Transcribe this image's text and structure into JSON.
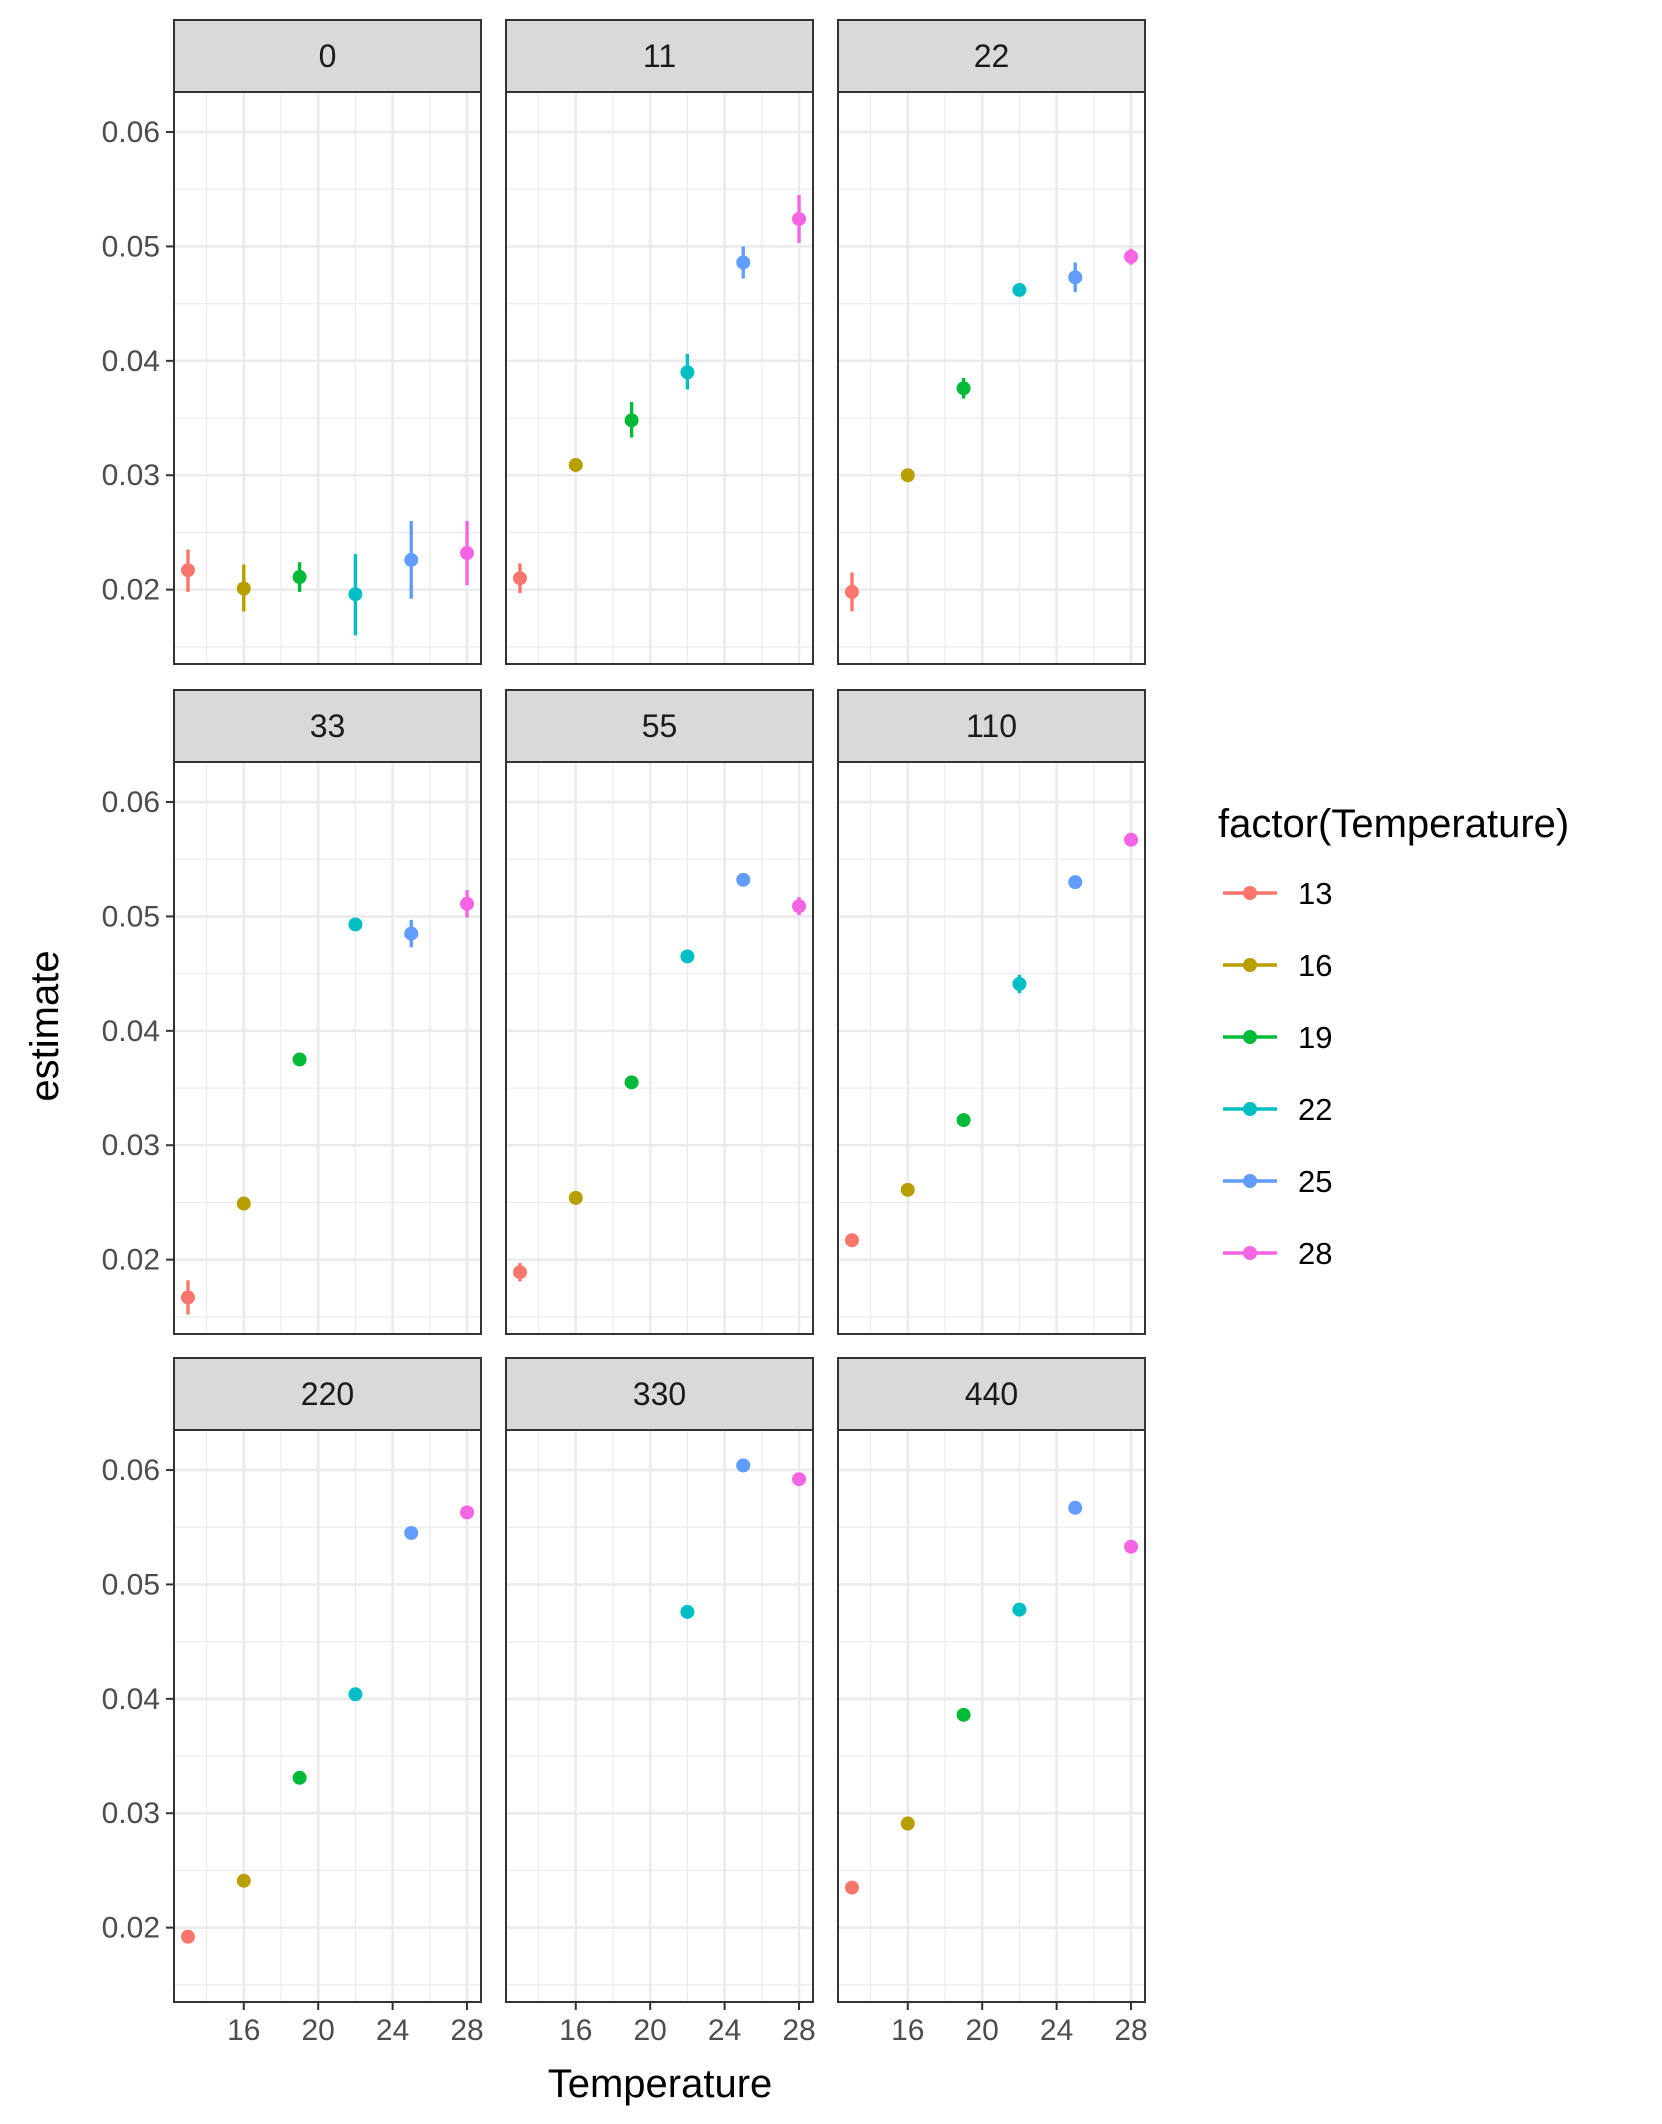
{
  "chart_data": {
    "type": "scatter",
    "subtype": "faceted point-range",
    "xlabel": "Temperature",
    "ylabel": "estimate",
    "x_ticks": [
      16,
      20,
      24,
      28
    ],
    "y_ticks": [
      0.02,
      0.03,
      0.04,
      0.05,
      0.06
    ],
    "y_tick_labels": [
      "0.02",
      "0.03",
      "0.04",
      "0.05",
      "0.06"
    ],
    "xlim": [
      12.25,
      28.75
    ],
    "ylim": [
      0.0135,
      0.0635
    ],
    "grid": true,
    "legend": {
      "title": "factor(Temperature)",
      "position": "right",
      "entries": [
        "13",
        "16",
        "19",
        "22",
        "25",
        "28"
      ]
    },
    "colors": {
      "13": "#F8766D",
      "16": "#B79F00",
      "19": "#00BA38",
      "22": "#00BFC4",
      "25": "#619CFF",
      "28": "#F564E3",
      "strip_bg": "#d9d9d9",
      "grid": "#ebebeb",
      "panel_border": "#333333"
    },
    "facets": [
      {
        "label": "0",
        "points": [
          {
            "x": 13,
            "y": 0.0217,
            "lo": 0.0198,
            "hi": 0.0235
          },
          {
            "x": 16,
            "y": 0.0201,
            "lo": 0.0181,
            "hi": 0.0222
          },
          {
            "x": 19,
            "y": 0.0211,
            "lo": 0.0198,
            "hi": 0.0224
          },
          {
            "x": 22,
            "y": 0.0196,
            "lo": 0.016,
            "hi": 0.0231
          },
          {
            "x": 25,
            "y": 0.0226,
            "lo": 0.0192,
            "hi": 0.026
          },
          {
            "x": 28,
            "y": 0.0232,
            "lo": 0.0204,
            "hi": 0.026
          }
        ]
      },
      {
        "label": "11",
        "points": [
          {
            "x": 13,
            "y": 0.021,
            "lo": 0.0197,
            "hi": 0.0223
          },
          {
            "x": 16,
            "y": 0.0309,
            "lo": 0.0303,
            "hi": 0.0315
          },
          {
            "x": 19,
            "y": 0.0348,
            "lo": 0.0333,
            "hi": 0.0364
          },
          {
            "x": 22,
            "y": 0.039,
            "lo": 0.0375,
            "hi": 0.0406
          },
          {
            "x": 25,
            "y": 0.0486,
            "lo": 0.0472,
            "hi": 0.05
          },
          {
            "x": 28,
            "y": 0.0524,
            "lo": 0.0503,
            "hi": 0.0545
          }
        ]
      },
      {
        "label": "22",
        "points": [
          {
            "x": 13,
            "y": 0.0198,
            "lo": 0.0181,
            "hi": 0.0215
          },
          {
            "x": 16,
            "y": 0.03,
            "lo": 0.0296,
            "hi": 0.0304
          },
          {
            "x": 19,
            "y": 0.0376,
            "lo": 0.0367,
            "hi": 0.0385
          },
          {
            "x": 22,
            "y": 0.0462,
            "lo": 0.0458,
            "hi": 0.0466
          },
          {
            "x": 25,
            "y": 0.0473,
            "lo": 0.046,
            "hi": 0.0486
          },
          {
            "x": 28,
            "y": 0.0491,
            "lo": 0.0484,
            "hi": 0.0498
          }
        ]
      },
      {
        "label": "33",
        "points": [
          {
            "x": 13,
            "y": 0.0167,
            "lo": 0.0152,
            "hi": 0.0182
          },
          {
            "x": 16,
            "y": 0.0249,
            "lo": 0.0243,
            "hi": 0.0255
          },
          {
            "x": 19,
            "y": 0.0375,
            "lo": 0.0371,
            "hi": 0.0379
          },
          {
            "x": 22,
            "y": 0.0493,
            "lo": 0.0489,
            "hi": 0.0497
          },
          {
            "x": 25,
            "y": 0.0485,
            "lo": 0.0473,
            "hi": 0.0497
          },
          {
            "x": 28,
            "y": 0.0511,
            "lo": 0.0499,
            "hi": 0.0523
          }
        ]
      },
      {
        "label": "55",
        "points": [
          {
            "x": 13,
            "y": 0.0189,
            "lo": 0.0181,
            "hi": 0.0197
          },
          {
            "x": 16,
            "y": 0.0254,
            "lo": 0.025,
            "hi": 0.0258
          },
          {
            "x": 19,
            "y": 0.0355,
            "lo": 0.0352,
            "hi": 0.0358
          },
          {
            "x": 22,
            "y": 0.0465,
            "lo": 0.0461,
            "hi": 0.0469
          },
          {
            "x": 25,
            "y": 0.0532,
            "lo": 0.0529,
            "hi": 0.0535
          },
          {
            "x": 28,
            "y": 0.0509,
            "lo": 0.0501,
            "hi": 0.0517
          }
        ]
      },
      {
        "label": "110",
        "points": [
          {
            "x": 13,
            "y": 0.0217,
            "lo": 0.0214,
            "hi": 0.022
          },
          {
            "x": 16,
            "y": 0.0261,
            "lo": 0.0257,
            "hi": 0.0265
          },
          {
            "x": 19,
            "y": 0.0322,
            "lo": 0.0319,
            "hi": 0.0325
          },
          {
            "x": 22,
            "y": 0.0441,
            "lo": 0.0433,
            "hi": 0.0449
          },
          {
            "x": 25,
            "y": 0.053,
            "lo": 0.0527,
            "hi": 0.0533
          },
          {
            "x": 28,
            "y": 0.0567,
            "lo": 0.0563,
            "hi": 0.0571
          }
        ]
      },
      {
        "label": "220",
        "points": [
          {
            "x": 13,
            "y": 0.0192,
            "lo": 0.019,
            "hi": 0.0194
          },
          {
            "x": 16,
            "y": 0.0241,
            "lo": 0.0239,
            "hi": 0.0243
          },
          {
            "x": 19,
            "y": 0.0331,
            "lo": 0.0329,
            "hi": 0.0333
          },
          {
            "x": 22,
            "y": 0.0404,
            "lo": 0.0402,
            "hi": 0.0406
          },
          {
            "x": 25,
            "y": 0.0545,
            "lo": 0.0543,
            "hi": 0.0547
          },
          {
            "x": 28,
            "y": 0.0563,
            "lo": 0.056,
            "hi": 0.0566
          }
        ]
      },
      {
        "label": "330",
        "points": [
          {
            "x": 22,
            "y": 0.0476,
            "lo": 0.0474,
            "hi": 0.0478
          },
          {
            "x": 25,
            "y": 0.0604,
            "lo": 0.0602,
            "hi": 0.0606
          },
          {
            "x": 28,
            "y": 0.0592,
            "lo": 0.059,
            "hi": 0.0594
          }
        ]
      },
      {
        "label": "440",
        "points": [
          {
            "x": 13,
            "y": 0.0235,
            "lo": 0.0233,
            "hi": 0.0237
          },
          {
            "x": 16,
            "y": 0.0291,
            "lo": 0.0289,
            "hi": 0.0293
          },
          {
            "x": 19,
            "y": 0.0386,
            "lo": 0.0384,
            "hi": 0.0388
          },
          {
            "x": 22,
            "y": 0.0478,
            "lo": 0.0476,
            "hi": 0.048
          },
          {
            "x": 25,
            "y": 0.0567,
            "lo": 0.0565,
            "hi": 0.0569
          },
          {
            "x": 28,
            "y": 0.0533,
            "lo": 0.0531,
            "hi": 0.0535
          }
        ]
      }
    ]
  }
}
